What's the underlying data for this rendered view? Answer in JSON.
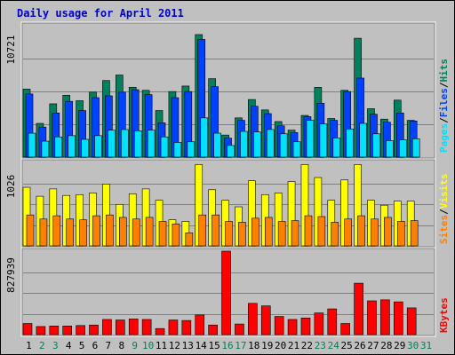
{
  "colors": {
    "background": "#c0c0c0",
    "plot": "#c0c0c0",
    "grid": "#808080",
    "title": "#0000cc",
    "hits": "#00805c",
    "files": "#0040ff",
    "pages": "#00e0ff",
    "visits": "#ffff00",
    "sites": "#ff8000",
    "kbytes": "#ff0000",
    "weekday": "#000000",
    "weekend": "#00805c"
  },
  "chart_data": {
    "type": "bar",
    "title": "Daily usage for April 2011",
    "x": [
      1,
      2,
      3,
      4,
      5,
      6,
      7,
      8,
      9,
      10,
      11,
      12,
      13,
      14,
      15,
      16,
      17,
      18,
      19,
      20,
      21,
      22,
      23,
      24,
      25,
      26,
      27,
      28,
      29,
      30,
      31
    ],
    "weekend_days": [
      2,
      3,
      9,
      10,
      16,
      17,
      23,
      24,
      30,
      31
    ],
    "panels": [
      {
        "ymax_label": "10721",
        "ymax": 10721,
        "labels": [
          {
            "text": "Pages",
            "color": "#00e0ff"
          },
          {
            "text": "/",
            "color": "#000000"
          },
          {
            "text": "Files",
            "color": "#0040ff"
          },
          {
            "text": "/",
            "color": "#000000"
          },
          {
            "text": "Hits",
            "color": "#00805c"
          }
        ],
        "series": [
          {
            "name": "Hits",
            "color": "#00805c",
            "values": [
              5550,
              2750,
              4350,
              5050,
              4600,
              5300,
              6250,
              6700,
              5700,
              5450,
              3800,
              5350,
              5800,
              10000,
              6400,
              1800,
              3200,
              4700,
              3850,
              2900,
              2200,
              3400,
              5700,
              3150,
              5450,
              9700,
              3950,
              3100,
              4650,
              3000,
              0
            ],
            "days": [
              1,
              2,
              3,
              4,
              5,
              6,
              7,
              8,
              9,
              10,
              11,
              12,
              13,
              14,
              15,
              16,
              17,
              18,
              19,
              20,
              21,
              22,
              23,
              24,
              25,
              26,
              27,
              28,
              29,
              30,
              31
            ]
          },
          {
            "name": "Files",
            "color": "#0040ff",
            "values": [
              5150,
              2450,
              3600,
              4550,
              3800,
              4850,
              5000,
              5300,
              5500,
              5100,
              2800,
              4850,
              5350,
              9600,
              5750,
              1550,
              3000,
              4150,
              3550,
              2550,
              2000,
              3300,
              4400,
              3000,
              5350,
              6450,
              3500,
              2850,
              3600,
              2950,
              0
            ],
            "days": [
              1,
              2,
              3,
              4,
              5,
              6,
              7,
              8,
              9,
              10,
              11,
              12,
              13,
              14,
              15,
              16,
              17,
              18,
              19,
              20,
              21,
              22,
              23,
              24,
              25,
              26,
              27,
              28,
              29,
              30,
              31
            ]
          },
          {
            "name": "Pages",
            "color": "#00e0ff",
            "values": [
              1950,
              1300,
              1650,
              1750,
              1450,
              1750,
              2200,
              2250,
              2150,
              2200,
              1650,
              1200,
              1250,
              3200,
              1950,
              950,
              2100,
              2050,
              2250,
              1900,
              1250,
              3000,
              2700,
              1550,
              2300,
              2750,
              1900,
              1350,
              1400,
              1500,
              0
            ],
            "days": [
              1,
              2,
              3,
              4,
              5,
              6,
              7,
              8,
              9,
              10,
              11,
              12,
              13,
              14,
              15,
              16,
              17,
              18,
              19,
              20,
              21,
              22,
              23,
              24,
              25,
              26,
              27,
              28,
              29,
              30,
              31
            ]
          }
        ]
      },
      {
        "ymax_label": "1026",
        "ymax": 1026,
        "labels": [
          {
            "text": "Sites",
            "color": "#ff8000"
          },
          {
            "text": "/",
            "color": "#000000"
          },
          {
            "text": "Visits",
            "color": "#ffff00"
          }
        ],
        "series": [
          {
            "name": "Visits",
            "color": "#ffff00",
            "values": [
              720,
              610,
              700,
              620,
              630,
              650,
              760,
              510,
              640,
              700,
              560,
              320,
              300,
              1000,
              690,
              560,
              480,
              800,
              630,
              650,
              790,
              1000,
              840,
              560,
              810,
              1000,
              560,
              500,
              550,
              550,
              0
            ],
            "days": [
              1,
              2,
              3,
              4,
              5,
              6,
              7,
              8,
              9,
              10,
              11,
              12,
              13,
              14,
              15,
              16,
              17,
              18,
              19,
              20,
              21,
              22,
              23,
              24,
              25,
              26,
              27,
              28,
              29,
              30,
              31
            ]
          },
          {
            "name": "Sites",
            "color": "#ff8000",
            "values": [
              380,
              330,
              370,
              330,
              320,
              370,
              380,
              350,
              330,
              350,
              300,
              270,
              160,
              380,
              380,
              300,
              290,
              340,
              350,
              300,
              310,
              370,
              360,
              290,
              330,
              370,
              330,
              350,
              300,
              310,
              0
            ],
            "days": [
              1,
              2,
              3,
              4,
              5,
              6,
              7,
              8,
              9,
              10,
              11,
              12,
              13,
              14,
              15,
              16,
              17,
              18,
              19,
              20,
              21,
              22,
              23,
              24,
              25,
              26,
              27,
              28,
              29,
              30,
              31
            ]
          }
        ]
      },
      {
        "ymax_label": "827939",
        "ymax": 827939,
        "labels": [
          {
            "text": "KBytes",
            "color": "#ff0000"
          }
        ],
        "series": [
          {
            "name": "KBytes",
            "color": "#ff0000",
            "values": [
              110000,
              80000,
              85000,
              85000,
              90000,
              95000,
              150000,
              145000,
              155000,
              150000,
              60000,
              145000,
              140000,
              195000,
              95000,
              827939,
              105000,
              310000,
              285000,
              180000,
              150000,
              165000,
              215000,
              255000,
              110000,
              510000,
              335000,
              345000,
              325000,
              265000,
              0
            ],
            "days": [
              1,
              2,
              3,
              4,
              5,
              6,
              7,
              8,
              9,
              10,
              11,
              12,
              13,
              14,
              15,
              16,
              17,
              18,
              19,
              20,
              21,
              22,
              23,
              24,
              25,
              26,
              27,
              28,
              29,
              30,
              31
            ]
          }
        ]
      }
    ]
  }
}
